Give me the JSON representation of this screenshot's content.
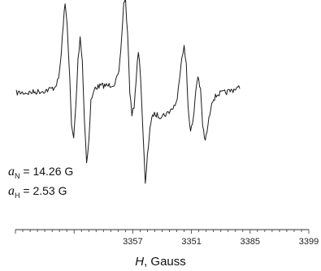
{
  "chart_data": {
    "type": "line",
    "title": "",
    "xlabel": {
      "symbol": "H",
      "text": ", Gauss"
    },
    "ylabel": "",
    "xlim": [
      3331,
      3399
    ],
    "xticks": [
      "3357",
      "3351",
      "3385",
      "3399"
    ],
    "grid": false,
    "legend": "none",
    "line_color": "#1a1a1a",
    "annotations": [
      {
        "symbol": "a",
        "sub": "N",
        "text": " = 14.26 G"
      },
      {
        "symbol": "a",
        "sub": "H",
        "text": " = 2.53 G"
      }
    ],
    "series": [
      {
        "points": [
          [
            3331.2,
            0.03
          ],
          [
            3334.0,
            0.03
          ],
          [
            3336.0,
            0.04
          ],
          [
            3338.0,
            0.05
          ],
          [
            3340.0,
            0.08
          ],
          [
            3341.0,
            0.16
          ],
          [
            3341.6,
            0.4
          ],
          [
            3342.1,
            0.72
          ],
          [
            3342.5,
            0.9
          ],
          [
            3343.0,
            0.7
          ],
          [
            3343.6,
            0.15
          ],
          [
            3344.0,
            -0.3
          ],
          [
            3344.5,
            -0.42
          ],
          [
            3345.0,
            -0.1
          ],
          [
            3345.5,
            0.35
          ],
          [
            3346.0,
            0.58
          ],
          [
            3346.5,
            0.35
          ],
          [
            3347.0,
            -0.25
          ],
          [
            3347.5,
            -0.65
          ],
          [
            3348.0,
            -0.45
          ],
          [
            3348.5,
            -0.05
          ],
          [
            3349.5,
            0.08
          ],
          [
            3351.0,
            0.1
          ],
          [
            3352.5,
            0.1
          ],
          [
            3354.0,
            0.12
          ],
          [
            3355.0,
            0.22
          ],
          [
            3355.6,
            0.55
          ],
          [
            3356.1,
            0.92
          ],
          [
            3356.5,
            0.95
          ],
          [
            3357.0,
            0.6
          ],
          [
            3357.5,
            0.05
          ],
          [
            3358.0,
            -0.2
          ],
          [
            3358.5,
            -0.1
          ],
          [
            3359.0,
            0.18
          ],
          [
            3359.5,
            0.45
          ],
          [
            3360.0,
            0.2
          ],
          [
            3360.6,
            -0.4
          ],
          [
            3361.1,
            -0.88
          ],
          [
            3361.6,
            -0.6
          ],
          [
            3362.2,
            -0.3
          ],
          [
            3363.0,
            -0.18
          ],
          [
            3364.5,
            -0.2
          ],
          [
            3366.0,
            -0.18
          ],
          [
            3367.5,
            -0.12
          ],
          [
            3368.5,
            -0.05
          ],
          [
            3369.0,
            0.18
          ],
          [
            3369.6,
            0.4
          ],
          [
            3370.1,
            0.48
          ],
          [
            3370.6,
            0.3
          ],
          [
            3371.0,
            -0.1
          ],
          [
            3371.6,
            -0.35
          ],
          [
            3372.2,
            -0.25
          ],
          [
            3372.8,
            0.05
          ],
          [
            3373.3,
            0.2
          ],
          [
            3373.9,
            0.05
          ],
          [
            3374.4,
            -0.3
          ],
          [
            3375.0,
            -0.45
          ],
          [
            3375.6,
            -0.3
          ],
          [
            3376.5,
            -0.05
          ],
          [
            3378.0,
            0.02
          ],
          [
            3379.5,
            0.03
          ],
          [
            3381.0,
            0.05
          ],
          [
            3382.5,
            0.08
          ],
          [
            3383.0,
            0.07
          ]
        ]
      }
    ]
  }
}
